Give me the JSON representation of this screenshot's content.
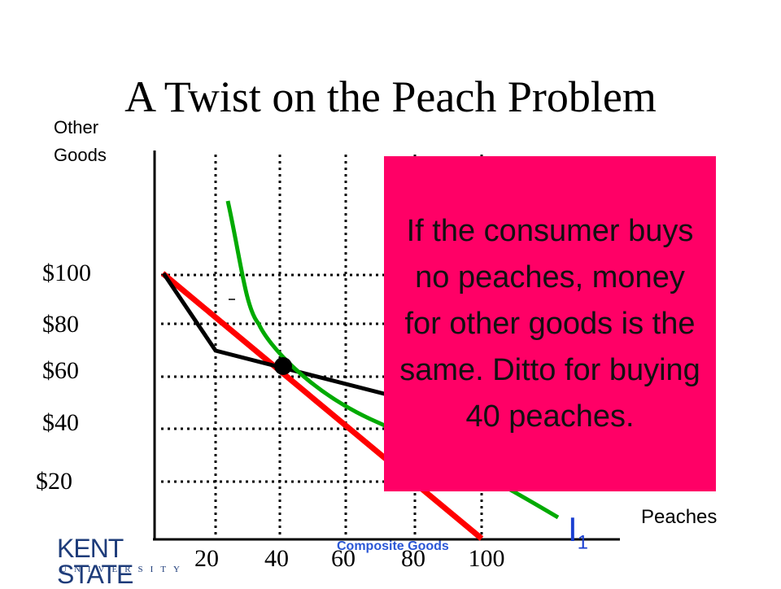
{
  "slide": {
    "title": "A Twist on the Peach Problem",
    "y_axis_label_line1": "Other",
    "y_axis_label_line2": "Goods",
    "x_axis_label": "Peaches",
    "y_ticks": [
      "$100",
      "$80",
      "$60",
      "$40",
      "$20"
    ],
    "x_ticks": [
      "20",
      "40",
      "60",
      "80",
      "100"
    ],
    "curve_label_main": "I",
    "curve_label_sub": "1",
    "callout_text": "If the consumer buys no peaches, money for other goods is the same. Ditto for buying 40 peaches.",
    "footer_text": "Composite Goods",
    "logo_main": "KENT STATE",
    "logo_sub": "UNIVERSITY"
  },
  "colors": {
    "budget_line": "#ff0000",
    "kinked_line": "#000000",
    "indifference_curve": "#00aa00",
    "callout_bg": "#ff0066",
    "curve_label": "#1a3fd1",
    "footer": "#2b57d6",
    "logo": "#1e3c7a"
  }
}
